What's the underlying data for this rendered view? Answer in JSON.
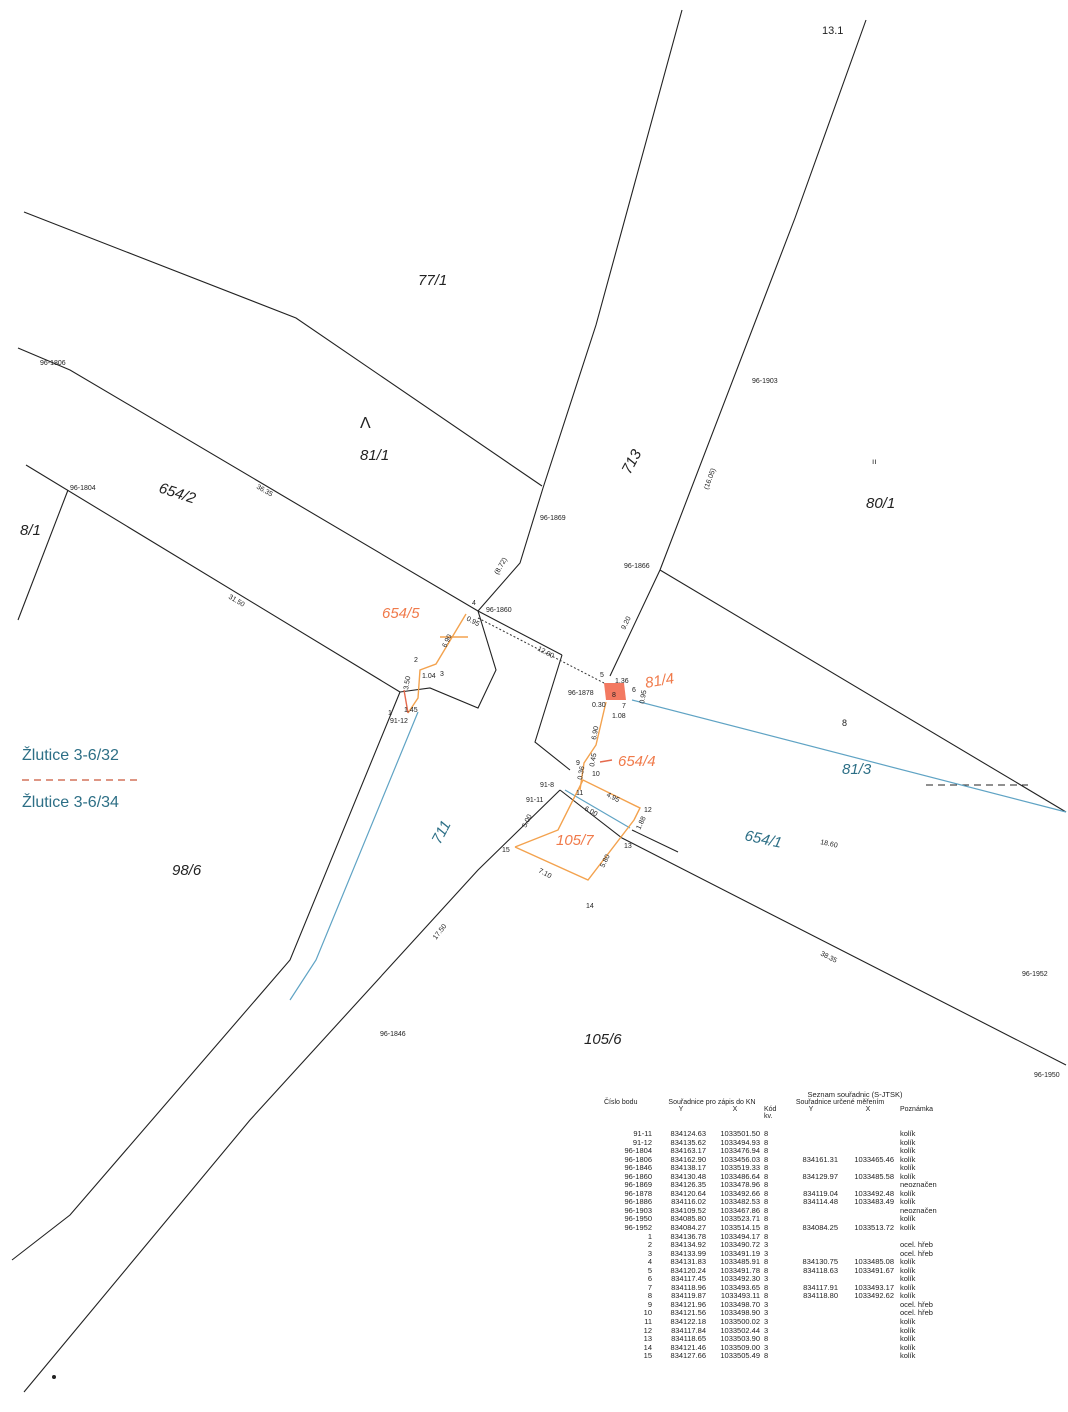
{
  "parcels": {
    "p77_1": "77/1",
    "p81_1": "81/1",
    "p654_2": "654/2",
    "p8_1": "8/1",
    "p713": "713",
    "p80_1": "80/1",
    "p654_5": "654/5",
    "p81_4": "81/4",
    "p654_4": "654/4",
    "p81_3": "81/3",
    "p711": "711",
    "p105_7": "105/7",
    "p654_1": "654/1",
    "p98_6": "98/6",
    "p105_6": "105/6",
    "p13_1": "13.1"
  },
  "survey_labels": {
    "l96_1806": "96-1806",
    "l96_1804": "96-1804",
    "l96_1903": "96-1903",
    "l96_1869": "96-1869",
    "l96_1866": "96-1866",
    "l96_1860": "96-1860",
    "l96_1878": "96-1878",
    "l91_12": "91-12",
    "l91_8": "91-8",
    "l91_11": "91-11",
    "l96_1846": "96-1846",
    "l96_1952": "96-1952",
    "l96_1950": "96-1950"
  },
  "point_numbers": {
    "n1": "1",
    "n2": "2",
    "n3": "3",
    "n4": "4",
    "n5": "5",
    "n6": "6",
    "n7": "7",
    "n8": "8",
    "n9": "9",
    "n10": "10",
    "n11": "11",
    "n12": "12",
    "n13": "13",
    "n14": "14",
    "n15": "15"
  },
  "dimensions": {
    "d36_35": "36.35",
    "d31_50": "31.50",
    "d8_72": "(8.72)",
    "d16_05": "(16.05)",
    "d9_20": "9.20",
    "d12_90": "12.90",
    "d0_95": "0.95",
    "d6_90": "6.90",
    "d1_04": "1.04",
    "d3_50": "3.50",
    "d1_45": "1.45",
    "d1_36": "1.36",
    "d0_95b": "0.95",
    "d0_30": "0.30",
    "d1_08": "1.08",
    "d6_90b": "6.90",
    "d0_45": "0.45",
    "d0_36": "0.36",
    "d4_95": "4.95",
    "d5_00": "5.00",
    "d6_00": "6.00",
    "d1_88": "1.88",
    "d5_80": "5.80",
    "d7_10": "7.10",
    "d18_60": "18.60",
    "d38_35": "38.35",
    "d17_50": "17.50"
  },
  "legend": {
    "top": "Žlutice 3-6/32",
    "bottom": "Žlutice 3-6/34"
  },
  "marks": {
    "north": "Λ",
    "sep1": "ıı",
    "sep2": "8"
  },
  "colors": {
    "orange": "#f3a24e",
    "red": "#e56a4d",
    "teal": "#5fa3c4",
    "black": "#222222"
  },
  "coordinate_table": {
    "title": "Seznam souřadnic (S-JTSK)",
    "headers": {
      "cislo": "Číslo bodu",
      "zapis": "Souřadnice pro zápis do KN",
      "y": "Y",
      "x": "X",
      "kod": "Kód kv.",
      "mereni": "Souřadnice určené měřením",
      "y2": "Y",
      "x2": "X",
      "poznamka": "Poznámka"
    },
    "rows": [
      [
        "91-11",
        "834124.63",
        "1033501.50",
        "8",
        "",
        "",
        "kolík"
      ],
      [
        "91-12",
        "834135.62",
        "1033494.93",
        "8",
        "",
        "",
        "kolík"
      ],
      [
        "96-1804",
        "834163.17",
        "1033476.94",
        "8",
        "",
        "",
        "kolík"
      ],
      [
        "96-1806",
        "834162.90",
        "1033456.03",
        "8",
        "834161.31",
        "1033465.46",
        "kolík"
      ],
      [
        "96-1846",
        "834138.17",
        "1033519.33",
        "8",
        "",
        "",
        "kolík"
      ],
      [
        "96-1860",
        "834130.48",
        "1033486.64",
        "8",
        "834129.97",
        "1033485.58",
        "kolík"
      ],
      [
        "96-1869",
        "834126.35",
        "1033478.96",
        "8",
        "",
        "",
        "neoznačen"
      ],
      [
        "96-1878",
        "834120.64",
        "1033492.66",
        "8",
        "834119.04",
        "1033492.48",
        "kolík"
      ],
      [
        "96-1886",
        "834116.02",
        "1033482.53",
        "8",
        "834114.48",
        "1033483.49",
        "kolík"
      ],
      [
        "96-1903",
        "834109.52",
        "1033467.86",
        "8",
        "",
        "",
        "neoznačen"
      ],
      [
        "96-1950",
        "834085.80",
        "1033523.71",
        "8",
        "",
        "",
        "kolík"
      ],
      [
        "96-1952",
        "834084.27",
        "1033514.15",
        "8",
        "834084.25",
        "1033513.72",
        "kolík"
      ],
      [
        "1",
        "834136.78",
        "1033494.17",
        "8",
        "",
        "",
        ""
      ],
      [
        "2",
        "834134.92",
        "1033490.72",
        "3",
        "",
        "",
        "ocel. hřeb"
      ],
      [
        "3",
        "834133.99",
        "1033491.19",
        "3",
        "",
        "",
        "ocel. hřeb"
      ],
      [
        "4",
        "834131.83",
        "1033485.91",
        "8",
        "834130.75",
        "1033485.08",
        "kolík"
      ],
      [
        "5",
        "834120.24",
        "1033491.78",
        "8",
        "834118.63",
        "1033491.67",
        "kolík"
      ],
      [
        "6",
        "834117.45",
        "1033492.30",
        "3",
        "",
        "",
        "kolík"
      ],
      [
        "7",
        "834118.96",
        "1033493.65",
        "8",
        "834117.91",
        "1033493.17",
        "kolík"
      ],
      [
        "8",
        "834119.87",
        "1033493.11",
        "8",
        "834118.80",
        "1033492.62",
        "kolík"
      ],
      [
        "9",
        "834121.96",
        "1033498.70",
        "3",
        "",
        "",
        "ocel. hřeb"
      ],
      [
        "10",
        "834121.56",
        "1033498.90",
        "3",
        "",
        "",
        "ocel. hřeb"
      ],
      [
        "11",
        "834122.18",
        "1033500.02",
        "3",
        "",
        "",
        "kolík"
      ],
      [
        "12",
        "834117.84",
        "1033502.44",
        "3",
        "",
        "",
        "kolík"
      ],
      [
        "13",
        "834118.65",
        "1033503.90",
        "8",
        "",
        "",
        "kolík"
      ],
      [
        "14",
        "834121.46",
        "1033509.00",
        "3",
        "",
        "",
        "kolík"
      ],
      [
        "15",
        "834127.66",
        "1033505.49",
        "8",
        "",
        "",
        "kolík"
      ]
    ]
  }
}
